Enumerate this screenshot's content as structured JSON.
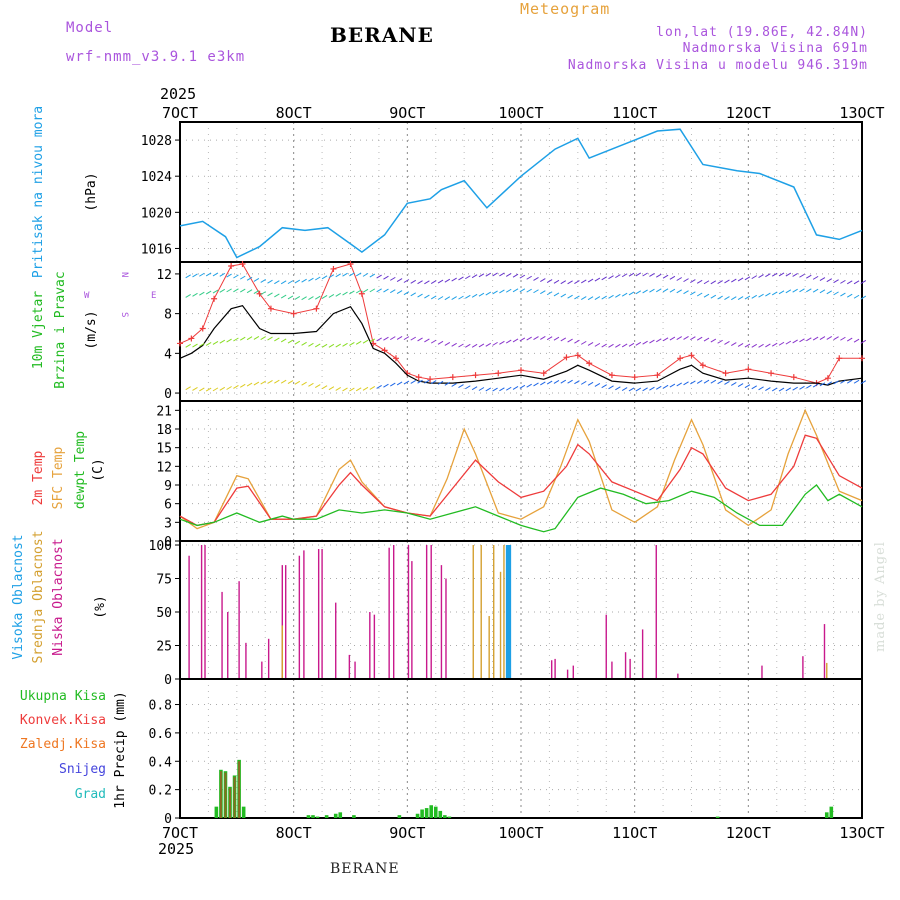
{
  "header": {
    "model_label": "Model",
    "model_name": "wrf-nmm_v3.9.1  e3km",
    "station": "BERANE",
    "title": "Meteogram",
    "lonlat": "lon,lat (19.86E, 42.84N)",
    "altitude": "Nadmorska Visina 691m",
    "model_altitude": "Nadmorska Visina u modelu 946.319m"
  },
  "footer": {
    "station": "BERANE",
    "credit": "made by Angel"
  },
  "colors": {
    "pressure": "#1ea0e6",
    "wind_label": "#22bb22",
    "temp": "#ee3b3b",
    "sfc_temp": "#e6a23c",
    "dewpt": "#22bb22",
    "high_cloud": "#1ea0e6",
    "mid_cloud": "#d4a030",
    "low_cloud": "#c8198c",
    "precip_total": "#22bb22",
    "precip_conv": "#ee3b3b",
    "precip_snow": "#4444dd",
    "precip_grid": "#22bbbb",
    "precip_frz": "#ee7722",
    "model_label": "#aa55dd"
  },
  "chart_data": [
    {
      "type": "line",
      "panel": "pressure",
      "title": "",
      "ylabel": "Pritisak na nivou mora",
      "units": "(hPa)",
      "x_axis_top": {
        "year": "2025",
        "ticks": [
          "7OCT",
          "8OCT",
          "9OCT",
          "10OCT",
          "11OCT",
          "12OCT",
          "13OCT"
        ]
      },
      "xlim": [
        7,
        13
      ],
      "ylim": [
        1014.5,
        1030
      ],
      "yticks": [
        1016,
        1020,
        1024,
        1028
      ],
      "grid": true,
      "series": [
        {
          "name": "",
          "x": [
            7.0,
            7.2,
            7.4,
            7.5,
            7.7,
            7.9,
            8.1,
            8.3,
            8.5,
            8.6,
            8.8,
            9.0,
            9.2,
            9.3,
            9.5,
            9.7,
            10.0,
            10.3,
            10.5,
            10.6,
            10.9,
            11.2,
            11.4,
            11.6,
            11.9,
            12.1,
            12.4,
            12.6,
            12.8,
            13.0
          ],
          "y": [
            1018.5,
            1019.0,
            1017.3,
            1015.0,
            1016.2,
            1018.3,
            1018.0,
            1018.3,
            1016.5,
            1015.6,
            1017.5,
            1021.0,
            1021.5,
            1022.5,
            1023.5,
            1020.5,
            1024.0,
            1027.0,
            1028.2,
            1026.0,
            1027.5,
            1029.0,
            1029.2,
            1025.3,
            1024.6,
            1024.3,
            1022.8,
            1017.5,
            1017.0,
            1018.0
          ]
        }
      ]
    },
    {
      "type": "line",
      "panel": "wind",
      "title": "",
      "ylabel": [
        "10m Vjetar",
        "Brzina i Pravac"
      ],
      "units": "(m/s)",
      "direction_legend": {
        "north": "N",
        "west": "W",
        "east": "E",
        "south": "S"
      },
      "xlim": [
        7,
        13
      ],
      "ylim": [
        -0.8,
        13.2
      ],
      "yticks": [
        0,
        4,
        8,
        12
      ],
      "grid": true,
      "series": [
        {
          "name": "wind speed",
          "x": [
            7.0,
            7.1,
            7.2,
            7.3,
            7.45,
            7.55,
            7.7,
            7.8,
            8.0,
            8.2,
            8.35,
            8.5,
            8.6,
            8.7,
            8.8,
            8.9,
            9.0,
            9.1,
            9.2,
            9.4,
            9.6,
            9.8,
            10.0,
            10.2,
            10.4,
            10.5,
            10.6,
            10.8,
            11.0,
            11.2,
            11.4,
            11.5,
            11.6,
            11.8,
            12.0,
            12.2,
            12.4,
            12.6,
            12.7,
            12.8,
            13.0
          ],
          "y": [
            3.5,
            4.0,
            4.8,
            6.5,
            8.5,
            8.8,
            6.5,
            6.0,
            6.0,
            6.2,
            8.0,
            8.7,
            7.0,
            4.5,
            4.0,
            3.0,
            1.8,
            1.2,
            1.0,
            1.0,
            1.2,
            1.5,
            1.8,
            1.4,
            2.2,
            2.8,
            2.3,
            1.2,
            1.0,
            1.2,
            2.4,
            2.8,
            2.0,
            1.3,
            1.5,
            1.2,
            1.0,
            1.0,
            0.8,
            1.2,
            1.5
          ]
        },
        {
          "name": "wind gust",
          "x": [
            7.0,
            7.1,
            7.2,
            7.3,
            7.45,
            7.55,
            7.7,
            7.8,
            8.0,
            8.2,
            8.35,
            8.5,
            8.6,
            8.7,
            8.8,
            8.9,
            9.0,
            9.1,
            9.2,
            9.4,
            9.6,
            9.8,
            10.0,
            10.2,
            10.4,
            10.5,
            10.6,
            10.8,
            11.0,
            11.2,
            11.4,
            11.5,
            11.6,
            11.8,
            12.0,
            12.2,
            12.4,
            12.6,
            12.7,
            12.8,
            13.0
          ],
          "y": [
            5.0,
            5.5,
            6.5,
            9.5,
            12.8,
            13.0,
            10.0,
            8.5,
            8.0,
            8.5,
            12.5,
            13.0,
            10.0,
            5.0,
            4.3,
            3.5,
            2.0,
            1.6,
            1.4,
            1.6,
            1.8,
            2.0,
            2.3,
            2.0,
            3.6,
            3.8,
            3.0,
            1.8,
            1.6,
            1.8,
            3.5,
            3.8,
            2.8,
            2.0,
            2.4,
            2.0,
            1.6,
            1.0,
            1.5,
            3.5,
            3.5
          ]
        }
      ]
    },
    {
      "type": "line",
      "panel": "temperature",
      "title": "",
      "ylabel": [
        "2m Temp",
        "SFC Temp",
        "dewpt Temp"
      ],
      "units": "(C)",
      "xlim": [
        7,
        13
      ],
      "ylim": [
        0,
        22.5
      ],
      "yticks": [
        0,
        3,
        6,
        9,
        12,
        15,
        18,
        21
      ],
      "grid": true,
      "series": [
        {
          "name": "2m Temp",
          "x": [
            7.0,
            7.15,
            7.3,
            7.5,
            7.6,
            7.8,
            8.0,
            8.2,
            8.4,
            8.5,
            8.6,
            8.8,
            9.0,
            9.2,
            9.4,
            9.6,
            9.8,
            10.0,
            10.2,
            10.4,
            10.5,
            10.6,
            10.8,
            11.0,
            11.2,
            11.4,
            11.5,
            11.6,
            11.8,
            12.0,
            12.2,
            12.4,
            12.5,
            12.6,
            12.8,
            13.0
          ],
          "y": [
            4.0,
            2.5,
            3.0,
            8.5,
            8.8,
            3.5,
            3.5,
            4.0,
            9.0,
            11.0,
            9.0,
            5.5,
            4.5,
            4.0,
            8.5,
            13.0,
            9.5,
            7.0,
            8.0,
            12.0,
            15.5,
            14.0,
            9.5,
            8.0,
            6.5,
            11.5,
            15.0,
            14.0,
            8.5,
            6.5,
            7.5,
            12.0,
            17.0,
            16.5,
            10.5,
            8.5
          ]
        },
        {
          "name": "SFC Temp",
          "x": [
            7.0,
            7.15,
            7.3,
            7.5,
            7.6,
            7.8,
            8.0,
            8.2,
            8.4,
            8.5,
            8.6,
            8.8,
            9.0,
            9.2,
            9.35,
            9.5,
            9.6,
            9.8,
            10.0,
            10.2,
            10.35,
            10.5,
            10.6,
            10.8,
            11.0,
            11.2,
            11.35,
            11.5,
            11.6,
            11.8,
            12.0,
            12.2,
            12.35,
            12.5,
            12.6,
            12.8,
            13.0
          ],
          "y": [
            4.0,
            2.0,
            3.0,
            10.5,
            10.0,
            3.5,
            3.5,
            4.0,
            11.5,
            13.0,
            9.5,
            5.5,
            4.5,
            4.0,
            10.0,
            18.0,
            14.0,
            4.5,
            3.5,
            5.5,
            12.0,
            19.5,
            16.0,
            5.0,
            3.0,
            5.5,
            13.0,
            19.5,
            15.5,
            5.0,
            2.5,
            5.0,
            14.0,
            21.0,
            17.0,
            8.0,
            6.5
          ]
        },
        {
          "name": "dewpt Temp",
          "x": [
            7.0,
            7.15,
            7.3,
            7.5,
            7.7,
            7.9,
            8.0,
            8.2,
            8.4,
            8.6,
            8.8,
            9.0,
            9.2,
            9.4,
            9.6,
            9.8,
            10.0,
            10.1,
            10.2,
            10.3,
            10.5,
            10.7,
            10.9,
            11.1,
            11.3,
            11.5,
            11.7,
            11.9,
            12.1,
            12.3,
            12.5,
            12.6,
            12.7,
            12.8,
            13.0
          ],
          "y": [
            3.5,
            2.5,
            3.0,
            4.5,
            3.0,
            4.0,
            3.5,
            3.5,
            5.0,
            4.5,
            5.0,
            4.5,
            3.5,
            4.5,
            5.5,
            4.0,
            2.5,
            2.0,
            1.5,
            2.0,
            7.0,
            8.5,
            7.5,
            6.0,
            6.5,
            8.0,
            7.0,
            4.5,
            2.5,
            2.5,
            7.5,
            9.0,
            6.5,
            7.5,
            5.5
          ]
        }
      ]
    },
    {
      "type": "bar",
      "panel": "clouds",
      "title": "",
      "ylabel": [
        "Visoka Oblacnost",
        "Srednja Oblacnost",
        "Niska Oblacnost"
      ],
      "units": "(%)",
      "xlim": [
        7,
        13
      ],
      "ylim": [
        0,
        103
      ],
      "yticks": [
        0,
        25,
        50,
        75,
        100
      ],
      "grid": true,
      "series": [
        {
          "name": "Niska Oblacnost",
          "x": [
            7.08,
            7.19,
            7.22,
            7.37,
            7.42,
            7.52,
            7.58,
            7.72,
            7.78,
            7.9,
            7.93,
            8.05,
            8.09,
            8.22,
            8.25,
            8.37,
            8.49,
            8.54,
            8.67,
            8.71,
            8.84,
            8.88,
            9.01,
            9.04,
            9.17,
            9.21,
            9.3,
            9.34,
            10.27,
            10.3,
            10.41,
            10.46,
            10.75,
            10.8,
            10.92,
            10.96,
            11.07,
            11.19,
            11.38,
            12.12,
            12.48,
            12.67
          ],
          "y": [
            92,
            100,
            100,
            65,
            50,
            73,
            27,
            13,
            30,
            85,
            85,
            92,
            96,
            97,
            97,
            57,
            18,
            13,
            50,
            48,
            98,
            100,
            100,
            88,
            100,
            100,
            85,
            75,
            14,
            15,
            7,
            10,
            48,
            13,
            20,
            15,
            37,
            100,
            4,
            10,
            17,
            41
          ]
        },
        {
          "name": "Srednja Oblacnost",
          "x": [
            7.9,
            9.58,
            9.65,
            9.72,
            9.76,
            9.82,
            9.85,
            12.69
          ],
          "y": [
            40,
            100,
            100,
            47,
            100,
            80,
            100,
            12
          ]
        },
        {
          "name": "Visoka Oblacnost",
          "x": [
            9.88,
            9.89,
            9.9
          ],
          "y": [
            100,
            100,
            100
          ]
        }
      ]
    },
    {
      "type": "bar",
      "panel": "precipitation",
      "title": "",
      "ylabel": "1hr Precip (mm)",
      "legend": [
        "Ukupna Kisa",
        "Konvek.Kisa",
        "Zaledj.Kisa",
        "Snijeg",
        "Grad"
      ],
      "x_axis_bottom": {
        "ticks": [
          "7OCT",
          "8OCT",
          "9OCT",
          "10OCT",
          "11OCT",
          "12OCT",
          "13OCT"
        ],
        "year": "2025"
      },
      "xlim": [
        7,
        13
      ],
      "ylim": [
        0,
        0.98
      ],
      "yticks": [
        0,
        0.2,
        0.4,
        0.6,
        0.8
      ],
      "grid": true,
      "series": [
        {
          "name": "Ukupna Kisa",
          "x": [
            7.32,
            7.36,
            7.4,
            7.44,
            7.48,
            7.52,
            7.56,
            8.13,
            8.17,
            8.21,
            8.29,
            8.37,
            8.41,
            8.53,
            8.93,
            9.09,
            9.13,
            9.17,
            9.21,
            9.25,
            9.29,
            9.33,
            9.37,
            11.73,
            12.69,
            12.73
          ],
          "y": [
            0.08,
            0.34,
            0.33,
            0.22,
            0.3,
            0.41,
            0.08,
            0.02,
            0.02,
            0.01,
            0.02,
            0.03,
            0.04,
            0.02,
            0.02,
            0.03,
            0.06,
            0.07,
            0.09,
            0.08,
            0.05,
            0.02,
            0.01,
            0.01,
            0.04,
            0.08
          ]
        },
        {
          "name": "Konvek.Kisa",
          "x": [
            7.36,
            7.4,
            7.44,
            7.48,
            7.52
          ],
          "y": [
            0.33,
            0.32,
            0.21,
            0.29,
            0.4
          ]
        }
      ]
    }
  ]
}
